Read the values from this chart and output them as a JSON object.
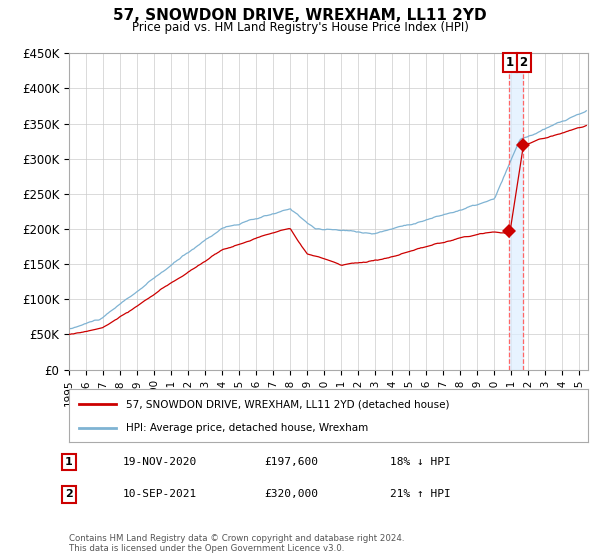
{
  "title": "57, SNOWDON DRIVE, WREXHAM, LL11 2YD",
  "subtitle": "Price paid vs. HM Land Registry's House Price Index (HPI)",
  "legend_line1": "57, SNOWDON DRIVE, WREXHAM, LL11 2YD (detached house)",
  "legend_line2": "HPI: Average price, detached house, Wrexham",
  "transaction1_date": "19-NOV-2020",
  "transaction1_price": "£197,600",
  "transaction1_hpi": "18% ↓ HPI",
  "transaction2_date": "10-SEP-2021",
  "transaction2_price": "£320,000",
  "transaction2_hpi": "21% ↑ HPI",
  "footnote": "Contains HM Land Registry data © Crown copyright and database right 2024.\nThis data is licensed under the Open Government Licence v3.0.",
  "house_color": "#cc0000",
  "hpi_color": "#7fb3d3",
  "vline_color": "#ff6666",
  "band_color": "#ddeeff",
  "ylim": [
    0,
    450000
  ],
  "yticks": [
    0,
    50000,
    100000,
    150000,
    200000,
    250000,
    300000,
    350000,
    400000,
    450000
  ],
  "background_color": "#ffffff",
  "grid_color": "#cccccc",
  "t1_x": 2020.875,
  "t1_y": 197600,
  "t2_x": 2021.667,
  "t2_y": 320000,
  "xmin": 1995,
  "xmax": 2025.5
}
